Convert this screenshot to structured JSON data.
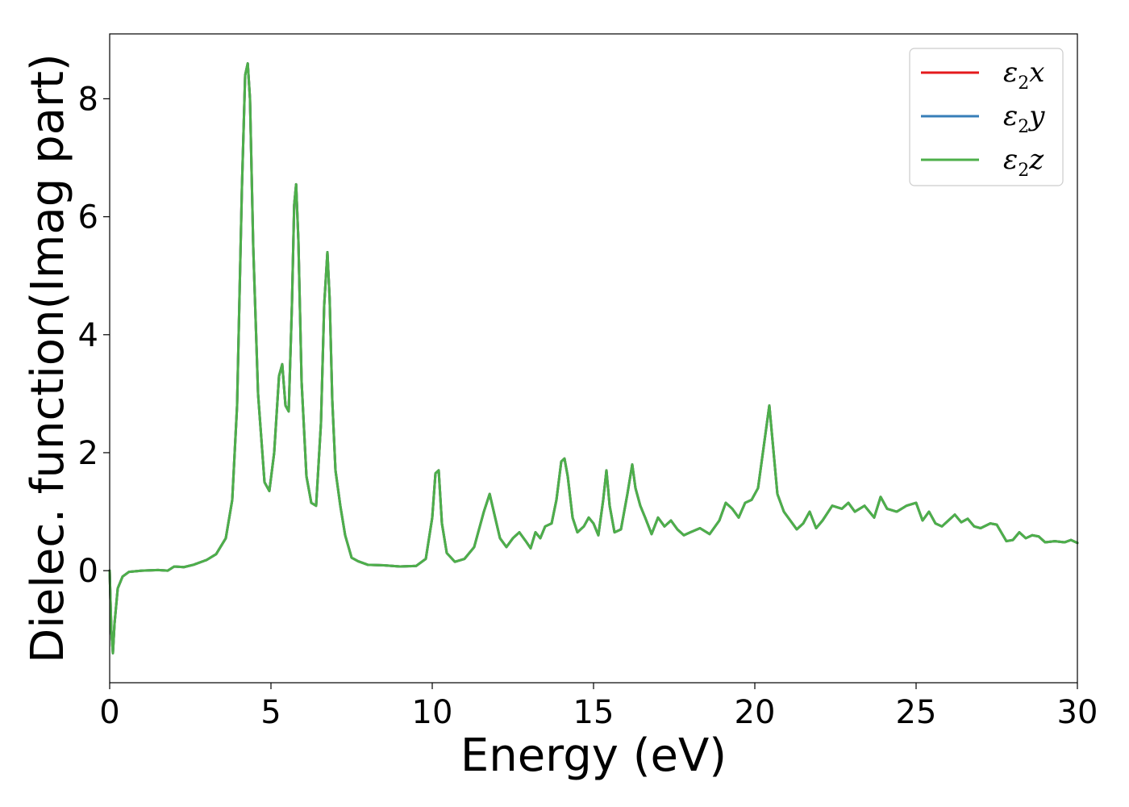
{
  "chart_data": {
    "type": "line",
    "title": "",
    "xlabel": "Energy (eV)",
    "ylabel": "Dielec. function(Imag part)",
    "xlim": [
      0,
      30
    ],
    "ylim": [
      -1.9,
      9.1
    ],
    "xticks": [
      0,
      5,
      10,
      15,
      20,
      25,
      30
    ],
    "yticks": [
      0,
      2,
      4,
      6,
      8
    ],
    "grid": false,
    "legend_position": "top-right",
    "legend": [
      {
        "key": "x",
        "base": "ε",
        "sub": "2",
        "var": "x",
        "color": "#e41a1c"
      },
      {
        "key": "y",
        "base": "ε",
        "sub": "2",
        "var": "y",
        "color": "#377eb8"
      },
      {
        "key": "z",
        "base": "ε",
        "sub": "2",
        "var": "z",
        "color": "#4daf4a"
      }
    ],
    "note": "All three series overlap; x and y curves are hidden beneath z.",
    "series": [
      {
        "name": "ε2x",
        "color": "#e41a1c",
        "x": [
          0,
          0.05,
          0.1,
          0.15,
          0.25,
          0.4,
          0.6,
          1.0,
          1.5,
          1.8,
          2.0,
          2.3,
          2.6,
          3.0,
          3.3,
          3.6,
          3.8,
          3.95,
          4.1,
          4.2,
          4.28,
          4.35,
          4.45,
          4.6,
          4.8,
          4.95,
          5.1,
          5.25,
          5.35,
          5.45,
          5.55,
          5.65,
          5.72,
          5.78,
          5.85,
          5.95,
          6.1,
          6.25,
          6.4,
          6.55,
          6.65,
          6.75,
          6.82,
          6.9,
          7.0,
          7.15,
          7.3,
          7.5,
          7.7,
          8.0,
          8.5,
          9.0,
          9.5,
          9.8,
          10.0,
          10.1,
          10.2,
          10.3,
          10.45,
          10.7,
          11.0,
          11.3,
          11.6,
          11.78,
          11.95,
          12.1,
          12.3,
          12.5,
          12.7,
          12.9,
          13.05,
          13.2,
          13.35,
          13.5,
          13.7,
          13.85,
          14.0,
          14.1,
          14.2,
          14.35,
          14.5,
          14.7,
          14.85,
          15.0,
          15.15,
          15.3,
          15.4,
          15.5,
          15.65,
          15.85,
          16.05,
          16.2,
          16.3,
          16.45,
          16.6,
          16.8,
          17.0,
          17.2,
          17.4,
          17.6,
          17.8,
          18.0,
          18.3,
          18.6,
          18.9,
          19.1,
          19.3,
          19.5,
          19.7,
          19.9,
          20.1,
          20.3,
          20.45,
          20.55,
          20.7,
          20.9,
          21.1,
          21.3,
          21.5,
          21.7,
          21.9,
          22.1,
          22.4,
          22.7,
          22.9,
          23.1,
          23.4,
          23.7,
          23.9,
          24.1,
          24.4,
          24.7,
          25.0,
          25.2,
          25.4,
          25.6,
          25.8,
          26.0,
          26.2,
          26.4,
          26.6,
          26.8,
          27.0,
          27.3,
          27.5,
          27.8,
          28.0,
          28.2,
          28.4,
          28.6,
          28.8,
          29.0,
          29.3,
          29.6,
          29.8,
          30.0
        ],
        "y": [
          0,
          -1.0,
          -1.4,
          -0.9,
          -0.3,
          -0.1,
          -0.02,
          0.0,
          0.01,
          0.0,
          0.07,
          0.06,
          0.1,
          0.18,
          0.28,
          0.55,
          1.2,
          2.8,
          6.5,
          8.4,
          8.6,
          8.0,
          5.5,
          3.0,
          1.5,
          1.35,
          2.0,
          3.3,
          3.5,
          2.8,
          2.7,
          4.5,
          6.2,
          6.55,
          5.6,
          3.2,
          1.6,
          1.15,
          1.1,
          2.5,
          4.5,
          5.4,
          4.6,
          2.9,
          1.7,
          1.1,
          0.6,
          0.22,
          0.16,
          0.1,
          0.09,
          0.07,
          0.08,
          0.2,
          0.9,
          1.65,
          1.7,
          0.8,
          0.3,
          0.15,
          0.2,
          0.4,
          1.0,
          1.3,
          0.9,
          0.55,
          0.4,
          0.55,
          0.65,
          0.5,
          0.38,
          0.65,
          0.55,
          0.75,
          0.8,
          1.2,
          1.85,
          1.9,
          1.6,
          0.9,
          0.65,
          0.75,
          0.9,
          0.8,
          0.6,
          1.2,
          1.7,
          1.1,
          0.65,
          0.7,
          1.3,
          1.8,
          1.4,
          1.1,
          0.9,
          0.62,
          0.9,
          0.75,
          0.85,
          0.7,
          0.6,
          0.65,
          0.72,
          0.62,
          0.85,
          1.15,
          1.05,
          0.9,
          1.15,
          1.2,
          1.4,
          2.2,
          2.8,
          2.2,
          1.3,
          1.0,
          0.85,
          0.7,
          0.8,
          1.0,
          0.72,
          0.85,
          1.1,
          1.05,
          1.15,
          1.0,
          1.1,
          0.9,
          1.25,
          1.05,
          1.0,
          1.1,
          1.15,
          0.85,
          1.0,
          0.8,
          0.75,
          0.85,
          0.95,
          0.82,
          0.88,
          0.75,
          0.72,
          0.8,
          0.78,
          0.5,
          0.52,
          0.65,
          0.55,
          0.6,
          0.58,
          0.48,
          0.5,
          0.48,
          0.52,
          0.47
        ]
      },
      {
        "name": "ε2y",
        "color": "#377eb8",
        "x": [
          0,
          0.05,
          0.1,
          0.15,
          0.25,
          0.4,
          0.6,
          1.0,
          1.5,
          1.8,
          2.0,
          2.3,
          2.6,
          3.0,
          3.3,
          3.6,
          3.8,
          3.95,
          4.1,
          4.2,
          4.28,
          4.35,
          4.45,
          4.6,
          4.8,
          4.95,
          5.1,
          5.25,
          5.35,
          5.45,
          5.55,
          5.65,
          5.72,
          5.78,
          5.85,
          5.95,
          6.1,
          6.25,
          6.4,
          6.55,
          6.65,
          6.75,
          6.82,
          6.9,
          7.0,
          7.15,
          7.3,
          7.5,
          7.7,
          8.0,
          8.5,
          9.0,
          9.5,
          9.8,
          10.0,
          10.1,
          10.2,
          10.3,
          10.45,
          10.7,
          11.0,
          11.3,
          11.6,
          11.78,
          11.95,
          12.1,
          12.3,
          12.5,
          12.7,
          12.9,
          13.05,
          13.2,
          13.35,
          13.5,
          13.7,
          13.85,
          14.0,
          14.1,
          14.2,
          14.35,
          14.5,
          14.7,
          14.85,
          15.0,
          15.15,
          15.3,
          15.4,
          15.5,
          15.65,
          15.85,
          16.05,
          16.2,
          16.3,
          16.45,
          16.6,
          16.8,
          17.0,
          17.2,
          17.4,
          17.6,
          17.8,
          18.0,
          18.3,
          18.6,
          18.9,
          19.1,
          19.3,
          19.5,
          19.7,
          19.9,
          20.1,
          20.3,
          20.45,
          20.55,
          20.7,
          20.9,
          21.1,
          21.3,
          21.5,
          21.7,
          21.9,
          22.1,
          22.4,
          22.7,
          22.9,
          23.1,
          23.4,
          23.7,
          23.9,
          24.1,
          24.4,
          24.7,
          25.0,
          25.2,
          25.4,
          25.6,
          25.8,
          26.0,
          26.2,
          26.4,
          26.6,
          26.8,
          27.0,
          27.3,
          27.5,
          27.8,
          28.0,
          28.2,
          28.4,
          28.6,
          28.8,
          29.0,
          29.3,
          29.6,
          29.8,
          30.0
        ],
        "y": [
          0,
          -1.0,
          -1.4,
          -0.9,
          -0.3,
          -0.1,
          -0.02,
          0.0,
          0.01,
          0.0,
          0.07,
          0.06,
          0.1,
          0.18,
          0.28,
          0.55,
          1.2,
          2.8,
          6.5,
          8.4,
          8.6,
          8.0,
          5.5,
          3.0,
          1.5,
          1.35,
          2.0,
          3.3,
          3.5,
          2.8,
          2.7,
          4.5,
          6.2,
          6.55,
          5.6,
          3.2,
          1.6,
          1.15,
          1.1,
          2.5,
          4.5,
          5.4,
          4.6,
          2.9,
          1.7,
          1.1,
          0.6,
          0.22,
          0.16,
          0.1,
          0.09,
          0.07,
          0.08,
          0.2,
          0.9,
          1.65,
          1.7,
          0.8,
          0.3,
          0.15,
          0.2,
          0.4,
          1.0,
          1.3,
          0.9,
          0.55,
          0.4,
          0.55,
          0.65,
          0.5,
          0.38,
          0.65,
          0.55,
          0.75,
          0.8,
          1.2,
          1.85,
          1.9,
          1.6,
          0.9,
          0.65,
          0.75,
          0.9,
          0.8,
          0.6,
          1.2,
          1.7,
          1.1,
          0.65,
          0.7,
          1.3,
          1.8,
          1.4,
          1.1,
          0.9,
          0.62,
          0.9,
          0.75,
          0.85,
          0.7,
          0.6,
          0.65,
          0.72,
          0.62,
          0.85,
          1.15,
          1.05,
          0.9,
          1.15,
          1.2,
          1.4,
          2.2,
          2.8,
          2.2,
          1.3,
          1.0,
          0.85,
          0.7,
          0.8,
          1.0,
          0.72,
          0.85,
          1.1,
          1.05,
          1.15,
          1.0,
          1.1,
          0.9,
          1.25,
          1.05,
          1.0,
          1.1,
          1.15,
          0.85,
          1.0,
          0.8,
          0.75,
          0.85,
          0.95,
          0.82,
          0.88,
          0.75,
          0.72,
          0.8,
          0.78,
          0.5,
          0.52,
          0.65,
          0.55,
          0.6,
          0.58,
          0.48,
          0.5,
          0.48,
          0.52,
          0.47
        ]
      },
      {
        "name": "ε2z",
        "color": "#4daf4a",
        "x": [
          0,
          0.05,
          0.1,
          0.15,
          0.25,
          0.4,
          0.6,
          1.0,
          1.5,
          1.8,
          2.0,
          2.3,
          2.6,
          3.0,
          3.3,
          3.6,
          3.8,
          3.95,
          4.1,
          4.2,
          4.28,
          4.35,
          4.45,
          4.6,
          4.8,
          4.95,
          5.1,
          5.25,
          5.35,
          5.45,
          5.55,
          5.65,
          5.72,
          5.78,
          5.85,
          5.95,
          6.1,
          6.25,
          6.4,
          6.55,
          6.65,
          6.75,
          6.82,
          6.9,
          7.0,
          7.15,
          7.3,
          7.5,
          7.7,
          8.0,
          8.5,
          9.0,
          9.5,
          9.8,
          10.0,
          10.1,
          10.2,
          10.3,
          10.45,
          10.7,
          11.0,
          11.3,
          11.6,
          11.78,
          11.95,
          12.1,
          12.3,
          12.5,
          12.7,
          12.9,
          13.05,
          13.2,
          13.35,
          13.5,
          13.7,
          13.85,
          14.0,
          14.1,
          14.2,
          14.35,
          14.5,
          14.7,
          14.85,
          15.0,
          15.15,
          15.3,
          15.4,
          15.5,
          15.65,
          15.85,
          16.05,
          16.2,
          16.3,
          16.45,
          16.6,
          16.8,
          17.0,
          17.2,
          17.4,
          17.6,
          17.8,
          18.0,
          18.3,
          18.6,
          18.9,
          19.1,
          19.3,
          19.5,
          19.7,
          19.9,
          20.1,
          20.3,
          20.45,
          20.55,
          20.7,
          20.9,
          21.1,
          21.3,
          21.5,
          21.7,
          21.9,
          22.1,
          22.4,
          22.7,
          22.9,
          23.1,
          23.4,
          23.7,
          23.9,
          24.1,
          24.4,
          24.7,
          25.0,
          25.2,
          25.4,
          25.6,
          25.8,
          26.0,
          26.2,
          26.4,
          26.6,
          26.8,
          27.0,
          27.3,
          27.5,
          27.8,
          28.0,
          28.2,
          28.4,
          28.6,
          28.8,
          29.0,
          29.3,
          29.6,
          29.8,
          30.0
        ],
        "y": [
          0,
          -1.0,
          -1.4,
          -0.9,
          -0.3,
          -0.1,
          -0.02,
          0.0,
          0.01,
          0.0,
          0.07,
          0.06,
          0.1,
          0.18,
          0.28,
          0.55,
          1.2,
          2.8,
          6.5,
          8.4,
          8.6,
          8.0,
          5.5,
          3.0,
          1.5,
          1.35,
          2.0,
          3.3,
          3.5,
          2.8,
          2.7,
          4.5,
          6.2,
          6.55,
          5.6,
          3.2,
          1.6,
          1.15,
          1.1,
          2.5,
          4.5,
          5.4,
          4.6,
          2.9,
          1.7,
          1.1,
          0.6,
          0.22,
          0.16,
          0.1,
          0.09,
          0.07,
          0.08,
          0.2,
          0.9,
          1.65,
          1.7,
          0.8,
          0.3,
          0.15,
          0.2,
          0.4,
          1.0,
          1.3,
          0.9,
          0.55,
          0.4,
          0.55,
          0.65,
          0.5,
          0.38,
          0.65,
          0.55,
          0.75,
          0.8,
          1.2,
          1.85,
          1.9,
          1.6,
          0.9,
          0.65,
          0.75,
          0.9,
          0.8,
          0.6,
          1.2,
          1.7,
          1.1,
          0.65,
          0.7,
          1.3,
          1.8,
          1.4,
          1.1,
          0.9,
          0.62,
          0.9,
          0.75,
          0.85,
          0.7,
          0.6,
          0.65,
          0.72,
          0.62,
          0.85,
          1.15,
          1.05,
          0.9,
          1.15,
          1.2,
          1.4,
          2.2,
          2.8,
          2.2,
          1.3,
          1.0,
          0.85,
          0.7,
          0.8,
          1.0,
          0.72,
          0.85,
          1.1,
          1.05,
          1.15,
          1.0,
          1.1,
          0.9,
          1.25,
          1.05,
          1.0,
          1.1,
          1.15,
          0.85,
          1.0,
          0.8,
          0.75,
          0.85,
          0.95,
          0.82,
          0.88,
          0.75,
          0.72,
          0.8,
          0.78,
          0.5,
          0.52,
          0.65,
          0.55,
          0.6,
          0.58,
          0.48,
          0.5,
          0.48,
          0.52,
          0.47
        ]
      }
    ]
  }
}
